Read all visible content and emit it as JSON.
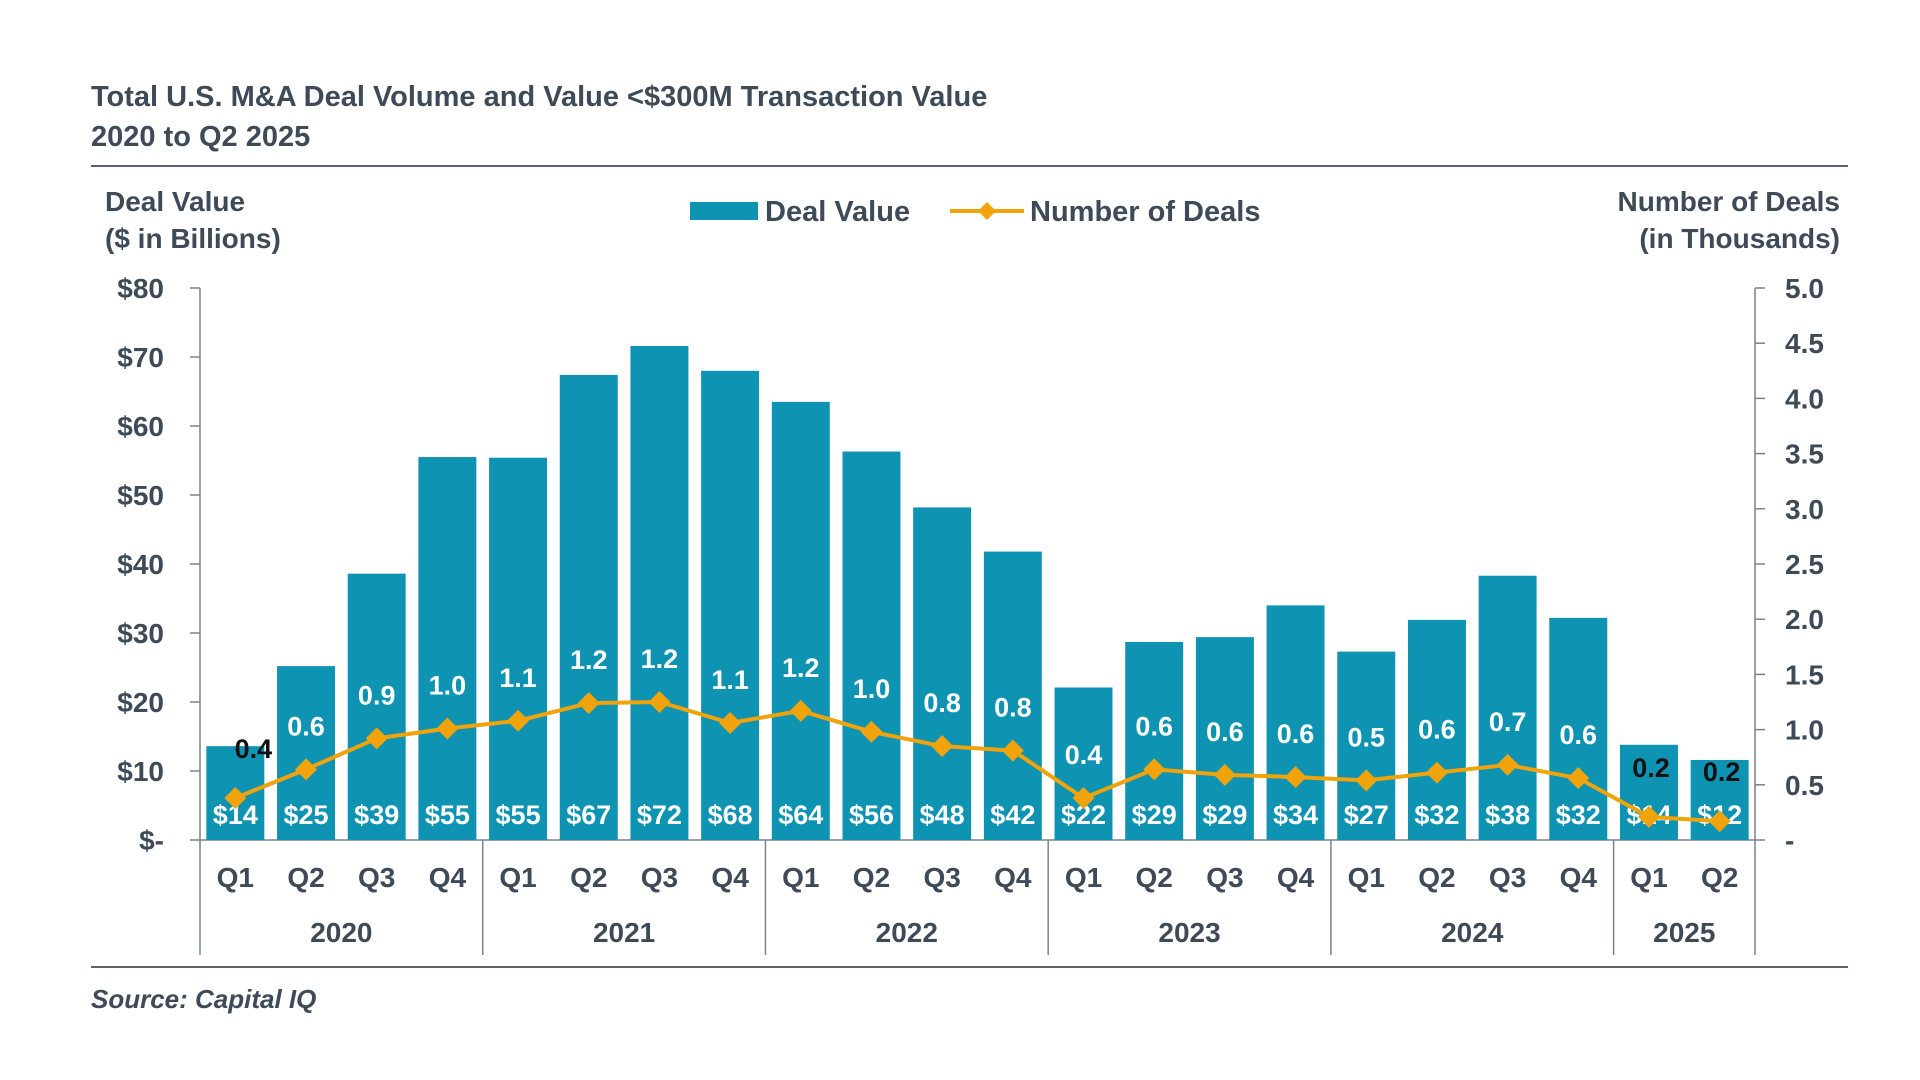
{
  "chart_data": {
    "type": "bar",
    "title": "Total U.S. M&A Deal Volume and Value <$300M Transaction Value",
    "subtitle": "2020 to Q2 2025",
    "source": "Source: Capital IQ",
    "y_left": {
      "label_line1": "Deal Value",
      "label_line2": "($ in Billions)",
      "ylim": [
        0,
        80
      ],
      "ticks": [
        {
          "value": 0,
          "label": "$-"
        },
        {
          "value": 10,
          "label": "$10"
        },
        {
          "value": 20,
          "label": "$20"
        },
        {
          "value": 30,
          "label": "$30"
        },
        {
          "value": 40,
          "label": "$40"
        },
        {
          "value": 50,
          "label": "$50"
        },
        {
          "value": 60,
          "label": "$60"
        },
        {
          "value": 70,
          "label": "$70"
        },
        {
          "value": 80,
          "label": "$80"
        }
      ]
    },
    "y_right": {
      "label_line1": "Number of Deals",
      "label_line2": "(in Thousands)",
      "ylim": [
        0,
        5
      ],
      "ticks": [
        {
          "value": 0,
          "label": "-"
        },
        {
          "value": 0.5,
          "label": "0.5"
        },
        {
          "value": 1,
          "label": "1.0"
        },
        {
          "value": 1.5,
          "label": "1.5"
        },
        {
          "value": 2,
          "label": "2.0"
        },
        {
          "value": 2.5,
          "label": "2.5"
        },
        {
          "value": 3,
          "label": "3.0"
        },
        {
          "value": 3.5,
          "label": "3.5"
        },
        {
          "value": 4,
          "label": "4.0"
        },
        {
          "value": 4.5,
          "label": "4.5"
        },
        {
          "value": 5,
          "label": "5.0"
        }
      ]
    },
    "categories": [
      "Q1",
      "Q2",
      "Q3",
      "Q4",
      "Q1",
      "Q2",
      "Q3",
      "Q4",
      "Q1",
      "Q2",
      "Q3",
      "Q4",
      "Q1",
      "Q2",
      "Q3",
      "Q4",
      "Q1",
      "Q2",
      "Q3",
      "Q4",
      "Q1",
      "Q2"
    ],
    "groups": [
      {
        "label": "2020",
        "count": 4
      },
      {
        "label": "2021",
        "count": 4
      },
      {
        "label": "2022",
        "count": 4
      },
      {
        "label": "2023",
        "count": 4
      },
      {
        "label": "2024",
        "count": 4
      },
      {
        "label": "2025",
        "count": 2
      }
    ],
    "series": [
      {
        "name": "Deal Value",
        "type": "bar",
        "axis": "left",
        "color": "#0e93b3",
        "values": [
          13.6,
          25.2,
          38.6,
          55.5,
          55.4,
          67.4,
          71.6,
          68.0,
          63.5,
          56.3,
          48.2,
          41.8,
          22.1,
          28.7,
          29.4,
          34.0,
          27.3,
          31.9,
          38.3,
          32.2,
          13.8,
          11.6
        ],
        "labels": [
          "$14",
          "$25",
          "$39",
          "$55",
          "$55",
          "$67",
          "$72",
          "$68",
          "$64",
          "$56",
          "$48",
          "$42",
          "$22",
          "$29",
          "$29",
          "$34",
          "$27",
          "$32",
          "$38",
          "$32",
          "$14",
          "$12"
        ]
      },
      {
        "name": "Number of Deals",
        "type": "line",
        "axis": "right",
        "color": "#f0a30a",
        "values": [
          0.38,
          0.64,
          0.92,
          1.01,
          1.08,
          1.24,
          1.25,
          1.06,
          1.17,
          0.98,
          0.85,
          0.81,
          0.38,
          0.64,
          0.59,
          0.57,
          0.54,
          0.61,
          0.68,
          0.56,
          0.21,
          0.17
        ],
        "labels": [
          "0.4",
          "0.6",
          "0.9",
          "1.0",
          "1.1",
          "1.2",
          "1.2",
          "1.1",
          "1.2",
          "1.0",
          "0.8",
          "0.8",
          "0.4",
          "0.6",
          "0.6",
          "0.6",
          "0.5",
          "0.6",
          "0.7",
          "0.6",
          "0.2",
          "0.2"
        ],
        "label_colors": [
          "#111111",
          "#ffffff",
          "#ffffff",
          "#ffffff",
          "#ffffff",
          "#ffffff",
          "#ffffff",
          "#ffffff",
          "#ffffff",
          "#ffffff",
          "#ffffff",
          "#ffffff",
          "#ffffff",
          "#ffffff",
          "#ffffff",
          "#ffffff",
          "#ffffff",
          "#ffffff",
          "#ffffff",
          "#ffffff",
          "#111111",
          "#111111"
        ]
      }
    ],
    "legend": {
      "position": "top-center",
      "bar_label": "Deal Value",
      "line_label": "Number of Deals"
    },
    "grid": false
  }
}
